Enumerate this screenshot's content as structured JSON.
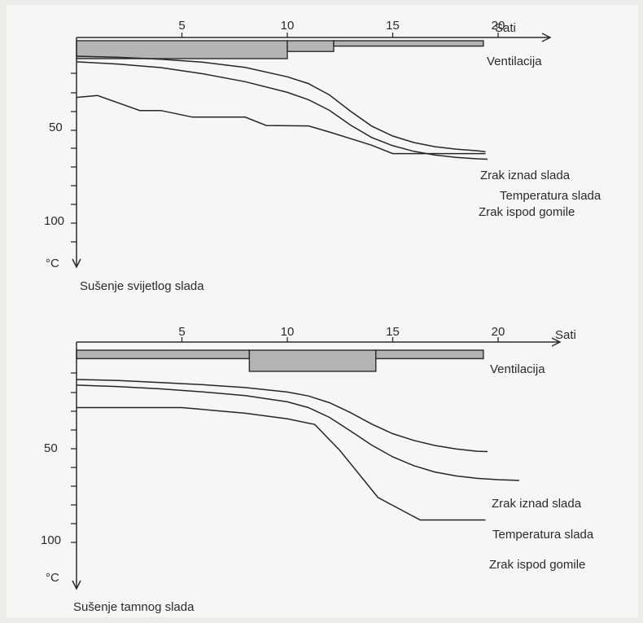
{
  "chart_data": [
    {
      "type": "line",
      "title": "Sušenje svijetlog slada",
      "xlabel": "Sati",
      "ylabel": "°C",
      "x_ticks": [
        5,
        10,
        15,
        20
      ],
      "y_tick_labels": [
        50,
        100
      ],
      "y_inverted": true,
      "xlim": [
        0,
        22
      ],
      "ylim": [
        15,
        120
      ],
      "ventilation": {
        "label": "Ventilacija",
        "levels": [
          {
            "from": 0,
            "to": 10,
            "level": 1
          },
          {
            "from": 10,
            "to": 12.2,
            "level": 0.6
          },
          {
            "from": 12.2,
            "to": 19.3,
            "level": 0.3
          }
        ]
      },
      "series": [
        {
          "name": "Zrak iznad slada",
          "x": [
            0,
            2,
            4,
            6,
            8,
            10,
            11,
            12,
            13,
            14,
            15,
            16,
            17,
            18,
            19,
            19.4
          ],
          "y": [
            25,
            25.6,
            26.6,
            28.2,
            31,
            36,
            39.6,
            45.7,
            54.4,
            62.3,
            67.6,
            71.1,
            73.3,
            74.6,
            75.5,
            76
          ]
        },
        {
          "name": "Temperatura slada",
          "x": [
            0,
            2,
            4,
            6,
            8,
            10,
            11,
            12,
            13,
            14,
            15,
            16,
            17,
            18,
            19,
            19.5
          ],
          "y": [
            28,
            29.2,
            31.1,
            34.4,
            38.6,
            44.3,
            48.2,
            53.9,
            61.8,
            68.4,
            72.8,
            75.8,
            77.8,
            79,
            79.8,
            80
          ]
        },
        {
          "name": "Zrak ispod gomile",
          "x": [
            0,
            1,
            3,
            4,
            5.5,
            8,
            9,
            11,
            12,
            14,
            15,
            19.4
          ],
          "y": [
            47,
            46,
            54,
            54,
            57.5,
            57.5,
            62,
            62.2,
            65.5,
            72.5,
            77,
            77
          ]
        }
      ]
    },
    {
      "type": "line",
      "title": "Sušenje tamnog slada",
      "xlabel": "Sati",
      "ylabel": "°C",
      "x_ticks": [
        5,
        10,
        15,
        20
      ],
      "y_tick_labels": [
        50,
        100
      ],
      "y_inverted": true,
      "xlim": [
        0,
        22
      ],
      "ylim": [
        15,
        120
      ],
      "ventilation": {
        "label": "Ventilacija",
        "levels": [
          {
            "from": 0,
            "to": 8.2,
            "level": 0.4
          },
          {
            "from": 8.2,
            "to": 14.2,
            "level": 1
          },
          {
            "from": 14.2,
            "to": 19.3,
            "level": 0.4
          }
        ]
      },
      "series": [
        {
          "name": "Zrak iznad slada",
          "x": [
            0,
            2,
            4,
            6,
            8,
            10,
            11,
            12,
            13,
            14,
            15,
            16,
            17,
            18,
            19,
            19.5
          ],
          "y": [
            35,
            35.5,
            36.6,
            37.8,
            39.3,
            41.7,
            43.8,
            47.4,
            52.7,
            58.8,
            63.9,
            67.5,
            70.2,
            72.1,
            73.3,
            73.5
          ]
        },
        {
          "name": "Temperatura slada",
          "x": [
            0,
            2,
            4,
            6,
            8,
            10,
            11,
            12,
            13,
            14,
            15,
            16,
            17,
            18,
            19,
            20,
            21
          ],
          "y": [
            38,
            38.8,
            40,
            41.6,
            43.6,
            46.9,
            50,
            55.2,
            62.5,
            70,
            76.3,
            81,
            84.4,
            86.5,
            87.8,
            88.5,
            88.9
          ]
        },
        {
          "name": "Zrak ispod gomile",
          "x": [
            0,
            5,
            8,
            10,
            11.3,
            12.5,
            14.3,
            16.3,
            19.4
          ],
          "y": [
            50,
            50,
            53,
            56,
            59,
            73,
            98,
            110,
            110
          ]
        }
      ]
    }
  ]
}
